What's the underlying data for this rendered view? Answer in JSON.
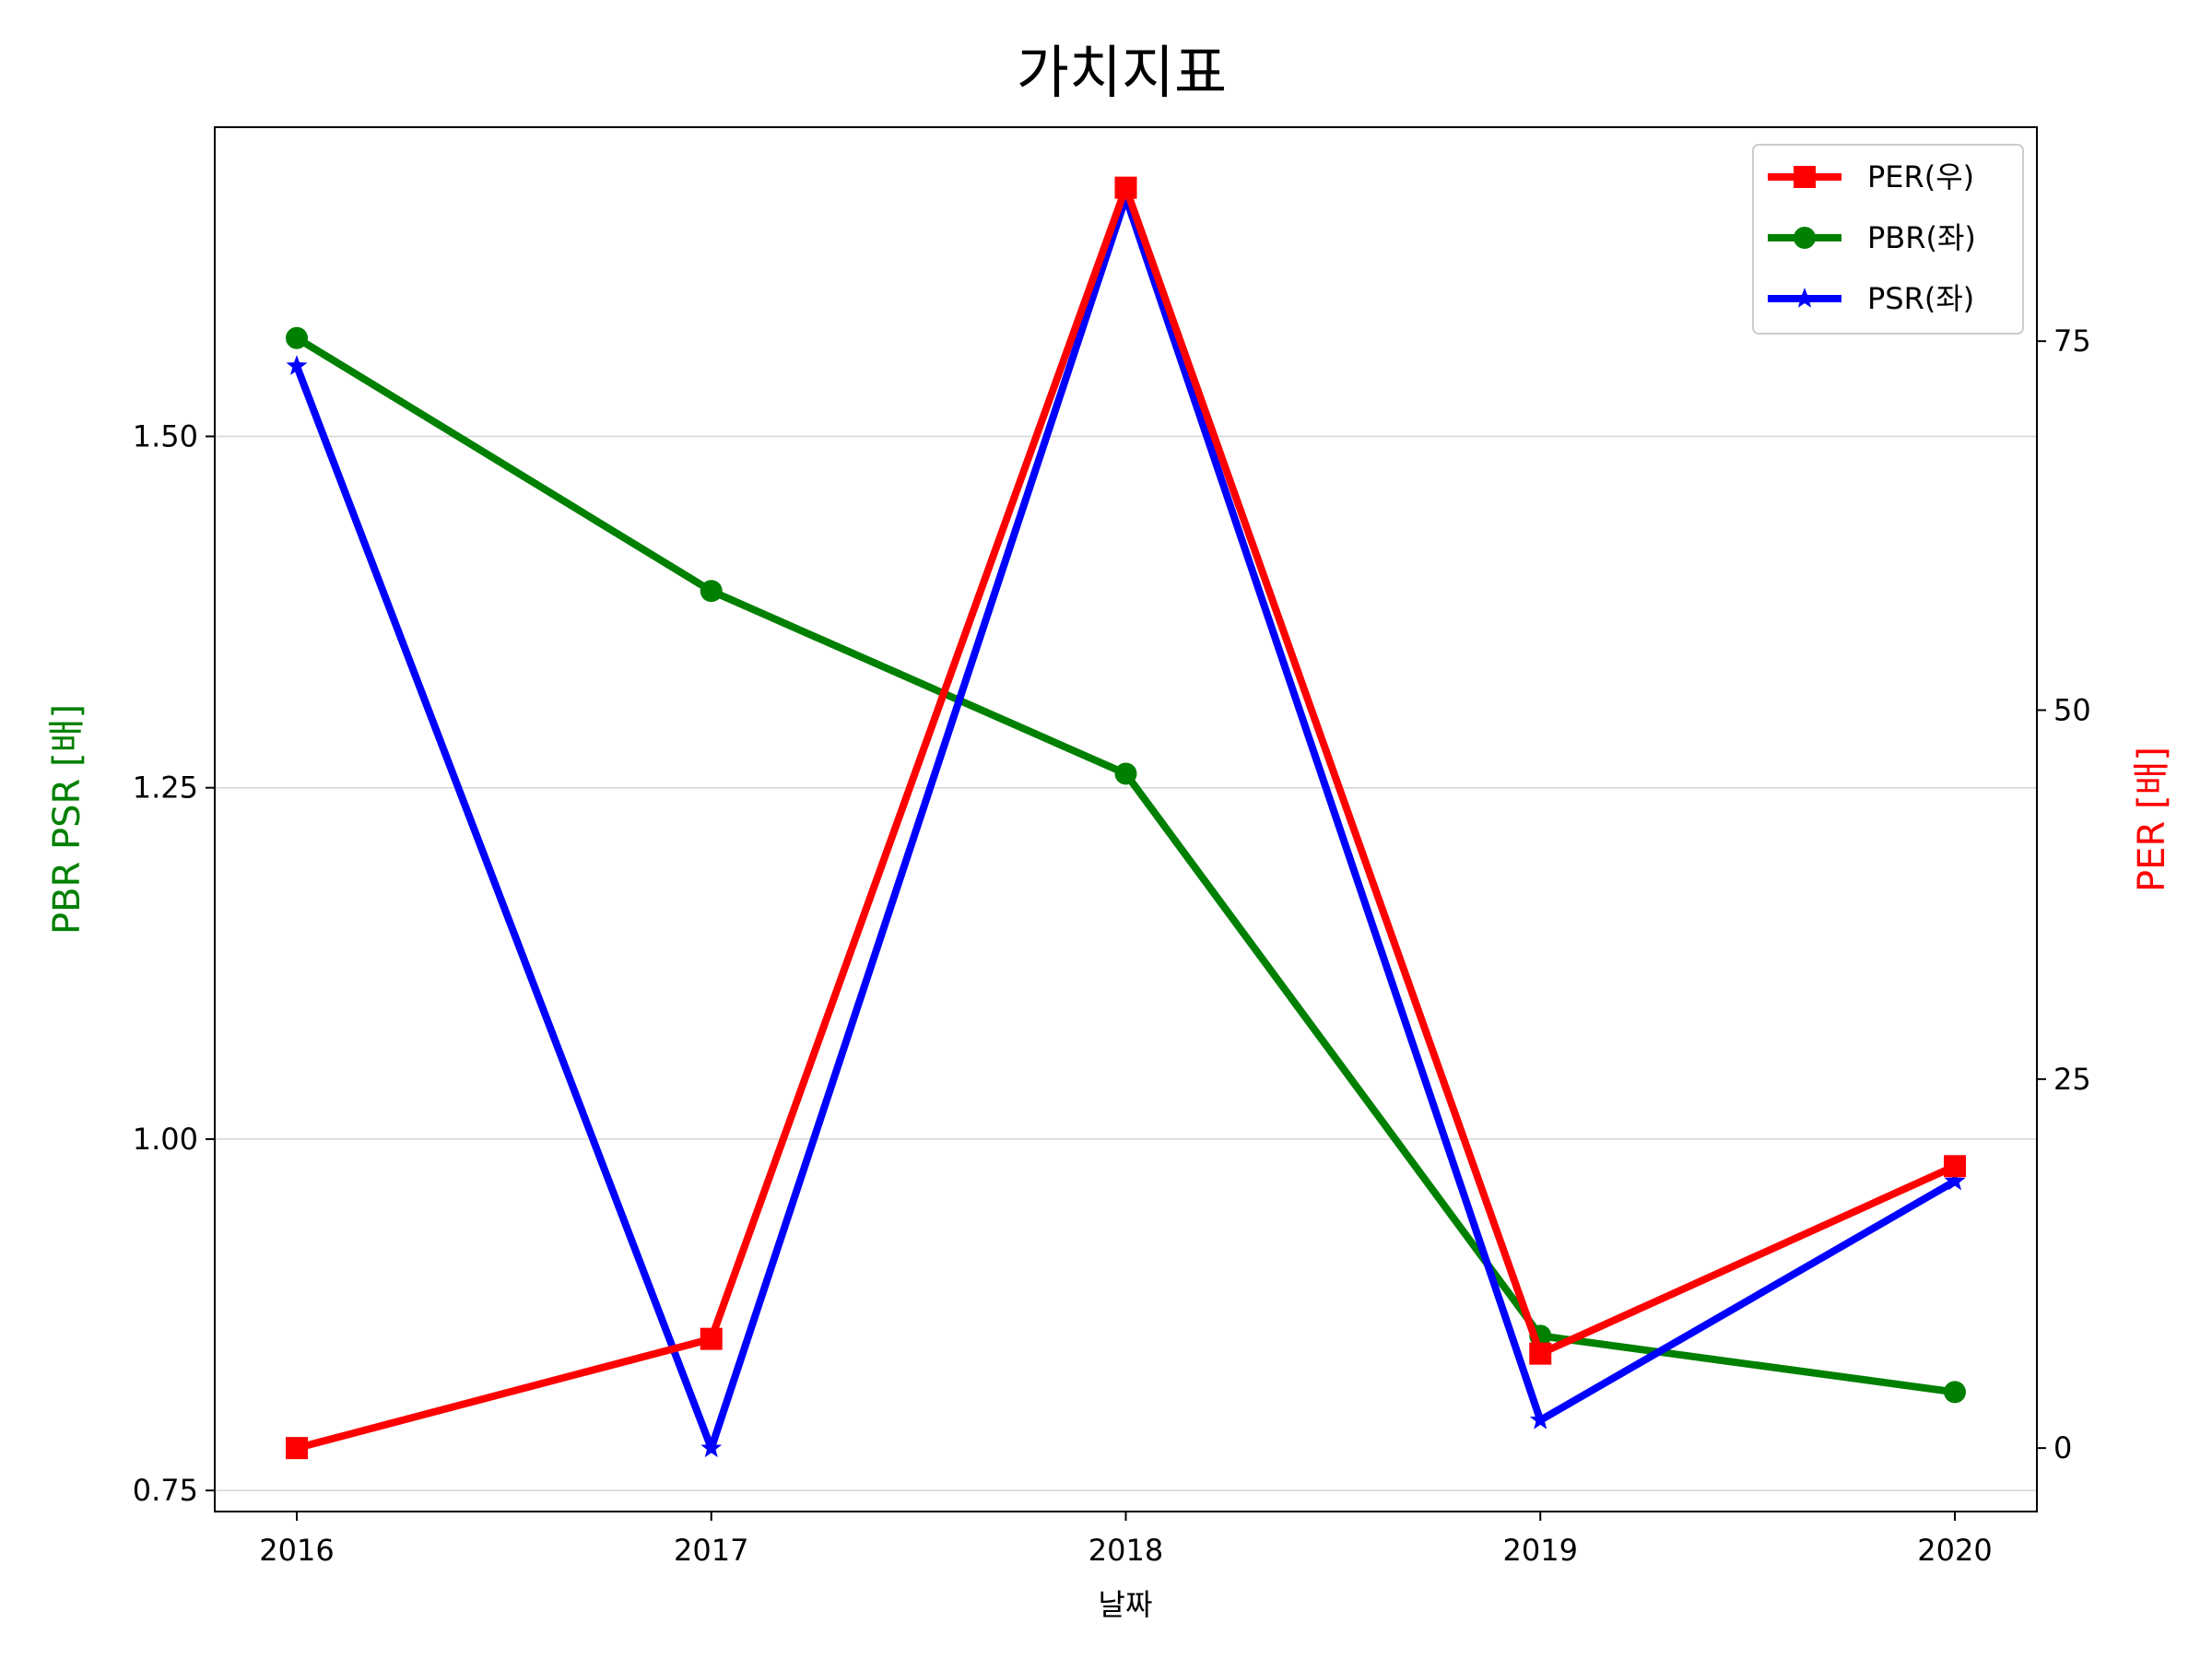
{
  "chart_data": {
    "type": "line",
    "title": "가치지표",
    "xlabel": "날짜",
    "ylabel_left": "PBR PSR [배]",
    "ylabel_right": "PER [배]",
    "categories": [
      "2016",
      "2017",
      "2018",
      "2019",
      "2020"
    ],
    "y_left": {
      "range": [
        0.735,
        1.72
      ],
      "ticks": [
        0.75,
        1.0,
        1.25,
        1.5
      ],
      "tick_labels": [
        "0.75",
        "1.00",
        "1.25",
        "1.50"
      ]
    },
    "y_right": {
      "range": [
        -4.3,
        89.5
      ],
      "ticks": [
        0,
        25,
        50,
        75
      ],
      "tick_labels": [
        "0",
        "25",
        "50",
        "75"
      ]
    },
    "grid": "y-left",
    "legend_position": "top-right",
    "series": [
      {
        "name": "PER(우)",
        "axis": "right",
        "color": "#ff0000",
        "marker": "square",
        "values": [
          0.0,
          7.4,
          85.4,
          6.4,
          19.1
        ]
      },
      {
        "name": "PBR(좌)",
        "axis": "left",
        "color": "#008000",
        "marker": "circle",
        "values": [
          1.57,
          1.39,
          1.26,
          0.86,
          0.82
        ]
      },
      {
        "name": "PSR(좌)",
        "axis": "left",
        "color": "#0000ff",
        "marker": "star",
        "values": [
          1.55,
          0.78,
          1.67,
          0.8,
          0.97
        ]
      }
    ],
    "colors": {
      "ylabel_left": "#008000",
      "ylabel_right": "#ff0000"
    }
  }
}
